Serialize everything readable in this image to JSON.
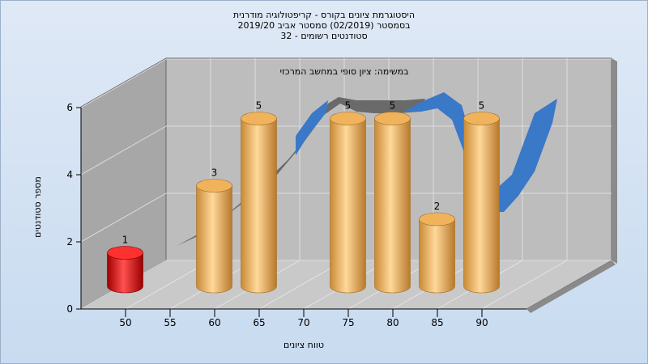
{
  "titles": {
    "line1": "היסטוגרמת ציונים בקורס - קריפטולוגיה מודרנית",
    "line2": "בסמסטר  (02/2019)  סמסטר אביב 2019/20",
    "line3": "סטודנטים רשומים - 32"
  },
  "colors": {
    "bar": "#f0b25a",
    "highlight": "#e01010",
    "back_wall": "#bdbdbd",
    "left_wall": "#a7a7a7",
    "floor": "#c9c9c9",
    "curve_blue": "#3a78c8",
    "curve_gray": "#6a6a6a"
  },
  "chart_data": {
    "type": "bar",
    "title": "היסטוגרמת ציונים בקורס - קריפטולוגיה מודרנית",
    "annotation": "במשימה: ציון סופי במחשב המרכזי",
    "xlabel": "טווח ציונים",
    "ylabel": "מספר סטודנטים",
    "x_ticks": [
      "50",
      "55",
      "60",
      "65",
      "70",
      "75",
      "80",
      "85",
      "90"
    ],
    "y_ticks": [
      "0",
      "2",
      "4",
      "6"
    ],
    "ylim": [
      0,
      6
    ],
    "grid": true,
    "categories": [
      "50",
      "55",
      "60",
      "65",
      "70",
      "75",
      "80",
      "85",
      "90"
    ],
    "values": [
      1,
      0,
      3,
      5,
      0,
      5,
      5,
      2,
      5
    ],
    "highlight_category": "50"
  }
}
